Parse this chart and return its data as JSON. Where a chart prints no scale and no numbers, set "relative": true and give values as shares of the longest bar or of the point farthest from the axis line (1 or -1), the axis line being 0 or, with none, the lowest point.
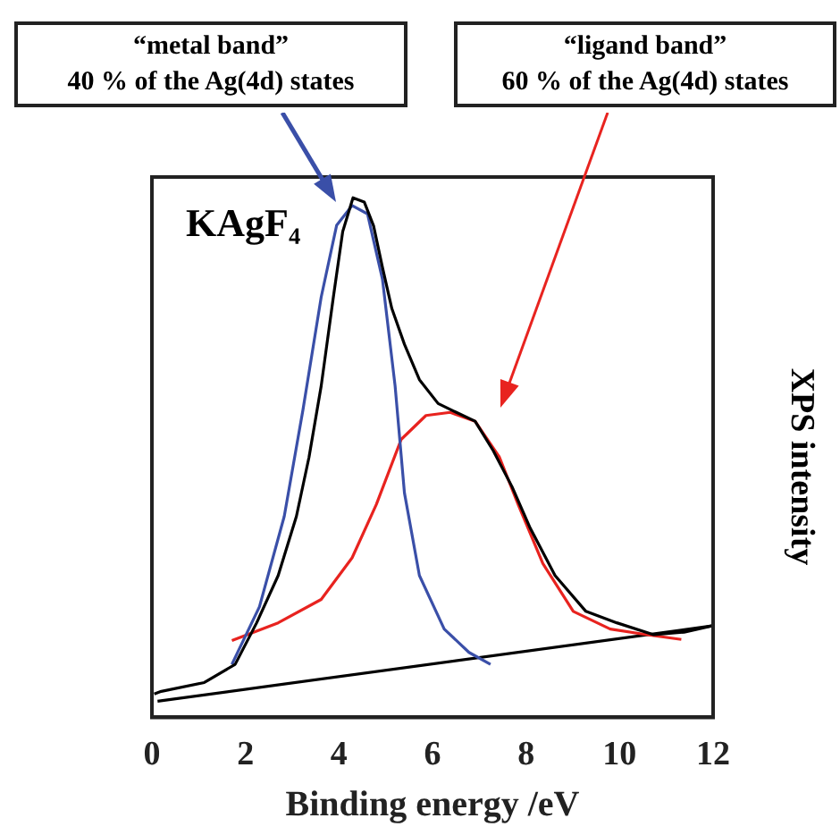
{
  "chart_data": {
    "type": "line",
    "relative": true,
    "xlabel": "Binding energy /eV",
    "ylabel": "XPS intensity",
    "xlim": [
      0,
      12
    ],
    "xticks": [
      0,
      2,
      4,
      6,
      8,
      10,
      12
    ],
    "grid": false,
    "legend": false,
    "marker": "none",
    "line_style": "solid",
    "annotations": [
      "KAgF₄",
      "“metal band”\n40 % of the Ag(4d) states",
      "“ligand band”\n60 % of the Ag(4d) states"
    ],
    "series": [
      {
        "color": "#000000",
        "x": [
          0.05,
          0.2,
          1.12,
          1.78,
          2.24,
          2.7,
          3.09,
          3.36,
          3.62,
          3.88,
          4.08,
          4.3,
          4.54,
          4.74,
          4.93,
          5.13,
          5.4,
          5.72,
          6.12,
          6.51,
          6.91,
          7.3,
          7.7,
          8.09,
          8.62,
          9.28,
          9.94,
          10.73,
          11.38,
          11.97
        ],
        "values": [
          0.045,
          0.05,
          0.067,
          0.102,
          0.182,
          0.273,
          0.387,
          0.501,
          0.638,
          0.809,
          0.935,
          1,
          0.992,
          0.946,
          0.866,
          0.787,
          0.718,
          0.65,
          0.604,
          0.587,
          0.57,
          0.513,
          0.444,
          0.364,
          0.273,
          0.204,
          0.182,
          0.159,
          0.164,
          0.176
        ]
      },
      {
        "color": "#3a4fa8",
        "x": [
          1.71,
          2.3,
          2.83,
          3.23,
          3.62,
          3.95,
          4.28,
          4.61,
          4.93,
          5.2,
          5.4,
          5.72,
          6.25,
          6.78,
          7.24
        ],
        "values": [
          0.102,
          0.213,
          0.387,
          0.592,
          0.809,
          0.947,
          0.985,
          0.969,
          0.843,
          0.638,
          0.432,
          0.273,
          0.17,
          0.125,
          0.102
        ]
      },
      {
        "color": "#e8231f",
        "x": [
          1.71,
          2.7,
          3.62,
          4.28,
          4.8,
          5.33,
          5.86,
          6.38,
          6.91,
          7.43,
          7.83,
          8.36,
          9.01,
          9.8,
          10.59,
          11.32
        ],
        "values": [
          0.148,
          0.182,
          0.227,
          0.307,
          0.41,
          0.535,
          0.581,
          0.587,
          0.57,
          0.501,
          0.41,
          0.296,
          0.204,
          0.17,
          0.159,
          0.15
        ]
      },
      {
        "color": "#000000",
        "x": [
          0.12,
          11.97
        ],
        "values": [
          0.031,
          0.176
        ]
      }
    ]
  }
}
